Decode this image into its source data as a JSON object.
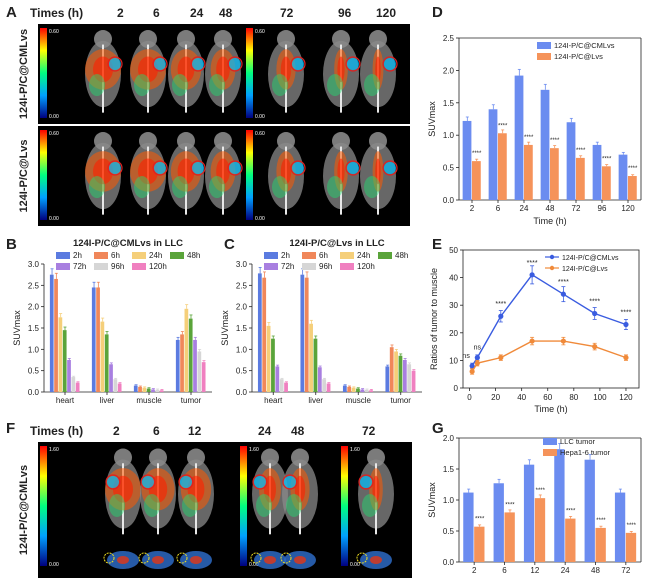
{
  "panels": {
    "A": {
      "letter": "A",
      "times_label": "Times (h)",
      "times": [
        "2",
        "6",
        "24",
        "48",
        "72",
        "96",
        "120"
      ],
      "row_labels": [
        "124I-P/C@CMLvs",
        "124I-P/C@Lvs"
      ],
      "colorbar_max": "0.60",
      "colorbar_min": "0.00"
    },
    "F": {
      "letter": "F",
      "times_label": "Times (h)",
      "times": [
        "2",
        "6",
        "12",
        "24",
        "48",
        "72"
      ],
      "row_label": "124I-P/C@CMLvs",
      "colorbar_max": "1.60",
      "colorbar_min": "0.00"
    }
  },
  "chart_data": [
    {
      "id": "B",
      "type": "bar",
      "title": "124I-P/C@CMLvs in LLC",
      "ylabel": "SUVmax",
      "ylim": [
        0,
        3.0
      ],
      "yticks": [
        "0.0",
        "0.5",
        "1.0",
        "1.5",
        "2.0",
        "2.5",
        "3.0"
      ],
      "categories": [
        "heart",
        "liver",
        "muscle",
        "tumor"
      ],
      "series": [
        {
          "name": "2h",
          "color": "#5b7be0",
          "values": [
            2.75,
            2.45,
            0.15,
            1.22
          ]
        },
        {
          "name": "6h",
          "color": "#f0875a",
          "values": [
            2.65,
            2.45,
            0.12,
            1.35
          ]
        },
        {
          "name": "24h",
          "color": "#f5cf7a",
          "values": [
            1.75,
            1.65,
            0.1,
            1.95
          ]
        },
        {
          "name": "48h",
          "color": "#5aa43a",
          "values": [
            1.45,
            1.35,
            0.08,
            1.72
          ]
        },
        {
          "name": "72h",
          "color": "#a87fe0",
          "values": [
            0.75,
            0.65,
            0.06,
            1.22
          ]
        },
        {
          "name": "96h",
          "color": "#d6d6d6",
          "values": [
            0.35,
            0.3,
            0.05,
            0.95
          ]
        },
        {
          "name": "120h",
          "color": "#f080c0",
          "values": [
            0.22,
            0.2,
            0.04,
            0.7
          ]
        }
      ],
      "legend": "top"
    },
    {
      "id": "C",
      "type": "bar",
      "title": "124I-P/C@Lvs in LLC",
      "ylabel": "SUVmax",
      "ylim": [
        0,
        3.0
      ],
      "yticks": [
        "0.0",
        "0.5",
        "1.0",
        "1.5",
        "2.0",
        "2.5",
        "3.0"
      ],
      "categories": [
        "heart",
        "liver",
        "muscle",
        "tumor"
      ],
      "series": [
        {
          "name": "2h",
          "color": "#5b7be0",
          "values": [
            2.78,
            2.75,
            0.15,
            0.6
          ]
        },
        {
          "name": "6h",
          "color": "#f0875a",
          "values": [
            2.68,
            2.68,
            0.12,
            1.05
          ]
        },
        {
          "name": "24h",
          "color": "#f5cf7a",
          "values": [
            1.55,
            1.6,
            0.1,
            0.95
          ]
        },
        {
          "name": "48h",
          "color": "#5aa43a",
          "values": [
            1.25,
            1.25,
            0.08,
            0.85
          ]
        },
        {
          "name": "72h",
          "color": "#a87fe0",
          "values": [
            0.6,
            0.58,
            0.06,
            0.75
          ]
        },
        {
          "name": "96h",
          "color": "#d6d6d6",
          "values": [
            0.3,
            0.3,
            0.05,
            0.65
          ]
        },
        {
          "name": "120h",
          "color": "#f080c0",
          "values": [
            0.22,
            0.2,
            0.04,
            0.5
          ]
        }
      ],
      "legend": "top"
    },
    {
      "id": "D",
      "type": "bar",
      "ylabel": "SUVmax",
      "xlabel": "Time (h)",
      "ylim": [
        0,
        2.5
      ],
      "yticks": [
        "0.0",
        "0.5",
        "1.0",
        "1.5",
        "2.0",
        "2.5"
      ],
      "categories": [
        "2",
        "6",
        "24",
        "48",
        "72",
        "96",
        "120"
      ],
      "series": [
        {
          "name": "124I-P/C@CMLvs",
          "color": "#6b8cf0",
          "values": [
            1.22,
            1.4,
            1.92,
            1.7,
            1.2,
            0.85,
            0.7
          ]
        },
        {
          "name": "124I-P/C@Lvs",
          "color": "#f5935a",
          "values": [
            0.6,
            1.03,
            0.85,
            0.8,
            0.65,
            0.52,
            0.37
          ]
        }
      ],
      "annotations": [
        "****",
        "****",
        "****",
        "****",
        "****",
        "****",
        "****"
      ],
      "legend": "top-right"
    },
    {
      "id": "E",
      "type": "line",
      "ylabel": "Ratios of tumor to muscle",
      "xlabel": "Time (h)",
      "xlim": [
        -5,
        130
      ],
      "ylim": [
        0,
        50
      ],
      "xticks": [
        "0",
        "20",
        "40",
        "60",
        "80",
        "100",
        "120"
      ],
      "yticks": [
        "0",
        "10",
        "20",
        "30",
        "40",
        "50"
      ],
      "x": [
        2,
        6,
        24,
        48,
        72,
        96,
        120
      ],
      "series": [
        {
          "name": "124I-P/C@CMLvs",
          "color": "#3a5ce0",
          "values": [
            8,
            11,
            26,
            41,
            34,
            27,
            23
          ]
        },
        {
          "name": "124I-P/C@Lvs",
          "color": "#f08a3a",
          "values": [
            6,
            9,
            11,
            17,
            17,
            15,
            11
          ]
        }
      ],
      "annotations": [
        "ns",
        "ns",
        "****",
        "****",
        "****",
        "****",
        "****"
      ],
      "legend": "top-right"
    },
    {
      "id": "G",
      "type": "bar",
      "ylabel": "SUVmax",
      "ylim": [
        0,
        2.0
      ],
      "yticks": [
        "0.0",
        "0.5",
        "1.0",
        "1.5",
        "2.0"
      ],
      "categories": [
        "2",
        "6",
        "12",
        "24",
        "48",
        "72"
      ],
      "series": [
        {
          "name": "LLC tumor",
          "color": "#6b8cf0",
          "values": [
            1.12,
            1.27,
            1.57,
            1.82,
            1.65,
            1.12
          ]
        },
        {
          "name": "Hepa1-6 tumor",
          "color": "#f5935a",
          "values": [
            0.57,
            0.8,
            1.03,
            0.7,
            0.55,
            0.47
          ]
        }
      ],
      "annotations": [
        "****",
        "****",
        "****",
        "****",
        "****",
        "****"
      ],
      "legend": "top-right"
    }
  ]
}
